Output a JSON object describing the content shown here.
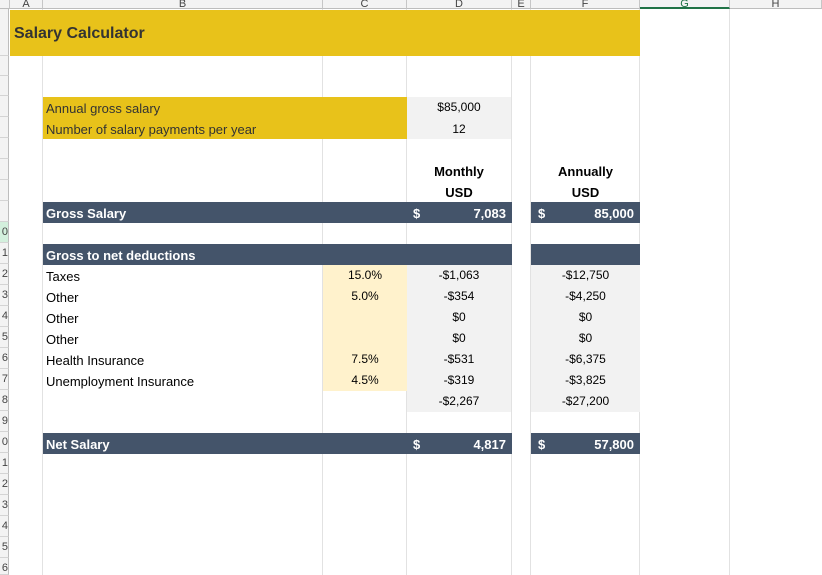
{
  "columns": [
    "A",
    "B",
    "C",
    "D",
    "E",
    "F",
    "G",
    "H"
  ],
  "rows": [
    "0",
    "1",
    "2",
    "3",
    "4",
    "5",
    "6",
    "7",
    "8",
    "9",
    "0",
    "1",
    "2",
    "3",
    "4",
    "5",
    "6"
  ],
  "title": "Salary Calculator",
  "inputs": {
    "annual_label": "Annual gross salary",
    "annual_value": "$85,000",
    "payments_label": "Number of salary payments per year",
    "payments_value": "12"
  },
  "headers": {
    "monthly": "Monthly",
    "monthly_unit": "USD",
    "annually": "Annually",
    "annually_unit": "USD"
  },
  "gross": {
    "label": "Gross Salary",
    "currency": "$",
    "monthly": "7,083",
    "annually": "85,000"
  },
  "deductions": {
    "title": "Gross to net deductions",
    "items": [
      {
        "label": "Taxes",
        "rate": "15.0%",
        "monthly": "-$1,063",
        "annually": "-$12,750"
      },
      {
        "label": "Other",
        "rate": "5.0%",
        "monthly": "-$354",
        "annually": "-$4,250"
      },
      {
        "label": "Other",
        "rate": "",
        "monthly": "$0",
        "annually": "$0"
      },
      {
        "label": "Other",
        "rate": "",
        "monthly": "$0",
        "annually": "$0"
      },
      {
        "label": "Health Insurance",
        "rate": "7.5%",
        "monthly": "-$531",
        "annually": "-$6,375"
      },
      {
        "label": "Unemployment Insurance",
        "rate": "4.5%",
        "monthly": "-$319",
        "annually": "-$3,825"
      }
    ],
    "total_monthly": "-$2,267",
    "total_annually": "-$27,200"
  },
  "net": {
    "label": "Net Salary",
    "currency": "$",
    "monthly": "4,817",
    "annually": "57,800"
  },
  "colors": {
    "gold": "#e8c21a",
    "pale_yellow": "#fff2cc",
    "grey": "#f2f2f2",
    "navy": "#44546a"
  }
}
